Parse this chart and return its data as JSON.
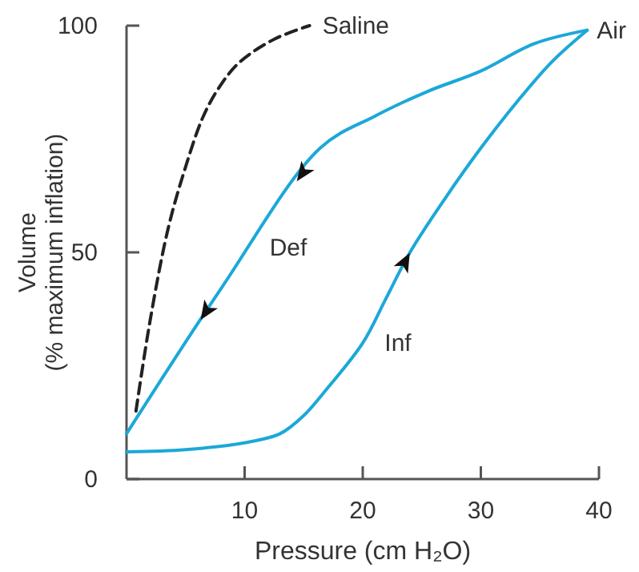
{
  "chart_data": {
    "type": "line",
    "xlabel": "Pressure (cm H₂O)",
    "ylabel": "Volume\n(% maximum inflation)",
    "xlim": [
      0,
      40
    ],
    "ylim": [
      0,
      100
    ],
    "xticks": [
      10,
      20,
      30,
      40
    ],
    "yticks": [
      0,
      50,
      100
    ],
    "grid": false,
    "marker": "none",
    "series": [
      {
        "name": "Saline",
        "color": "#222222",
        "line_style": "dashed",
        "x": [
          0.8,
          2,
          3.5,
          4.9,
          6.5,
          8,
          9.6,
          12.5,
          15.5
        ],
        "values": [
          15,
          35,
          55,
          68,
          80,
          87,
          92,
          97,
          100
        ]
      },
      {
        "name": "Inf",
        "color": "#1ba8d8",
        "line_style": "solid",
        "x": [
          0,
          5,
          10,
          13,
          15,
          17,
          20,
          22,
          24,
          27,
          30,
          33,
          36,
          39
        ],
        "values": [
          6,
          6.5,
          8,
          10,
          14,
          20,
          30,
          40,
          50,
          62,
          73,
          83,
          92,
          99
        ]
      },
      {
        "name": "Def",
        "color": "#1ba8d8",
        "line_style": "solid",
        "x": [
          39,
          34.5,
          30,
          25.5,
          21,
          16.4,
          8,
          0
        ],
        "values": [
          99,
          96,
          90,
          85.5,
          80,
          73,
          42,
          10
        ]
      }
    ],
    "annotations": [
      {
        "text": "Air",
        "x": 39,
        "y": 99
      }
    ]
  }
}
